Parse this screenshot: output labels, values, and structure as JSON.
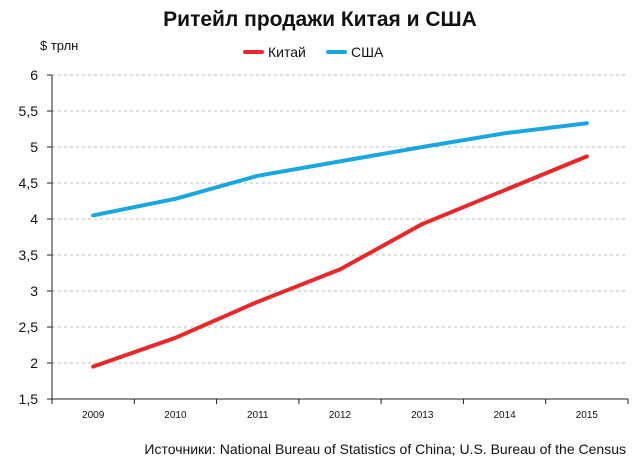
{
  "chart_data": {
    "type": "line",
    "title": "Ритейл продажи Китая и США",
    "ylabel": "$ трлн",
    "xlabel": "",
    "categories": [
      "2009",
      "2010",
      "2011",
      "2012",
      "2013",
      "2014",
      "2015"
    ],
    "series": [
      {
        "name": "Китай",
        "color": "#e8282b",
        "values": [
          1.95,
          2.35,
          2.85,
          3.3,
          3.93,
          4.4,
          4.87
        ]
      },
      {
        "name": "США",
        "color": "#1aa7e0",
        "values": [
          4.05,
          4.28,
          4.6,
          4.8,
          5.0,
          5.19,
          5.33
        ]
      }
    ],
    "ylim": [
      1.5,
      6
    ],
    "yticks": [
      "1,5",
      "2",
      "2,5",
      "3",
      "3,5",
      "4",
      "4,5",
      "5",
      "5,5",
      "6"
    ],
    "ytick_values": [
      1.5,
      2,
      2.5,
      3,
      3.5,
      4,
      4.5,
      5,
      5.5,
      6
    ],
    "grid": true,
    "legend_position": "top"
  },
  "source": "Источники: National Bureau of Statistics of China; U.S. Bureau of the Census"
}
